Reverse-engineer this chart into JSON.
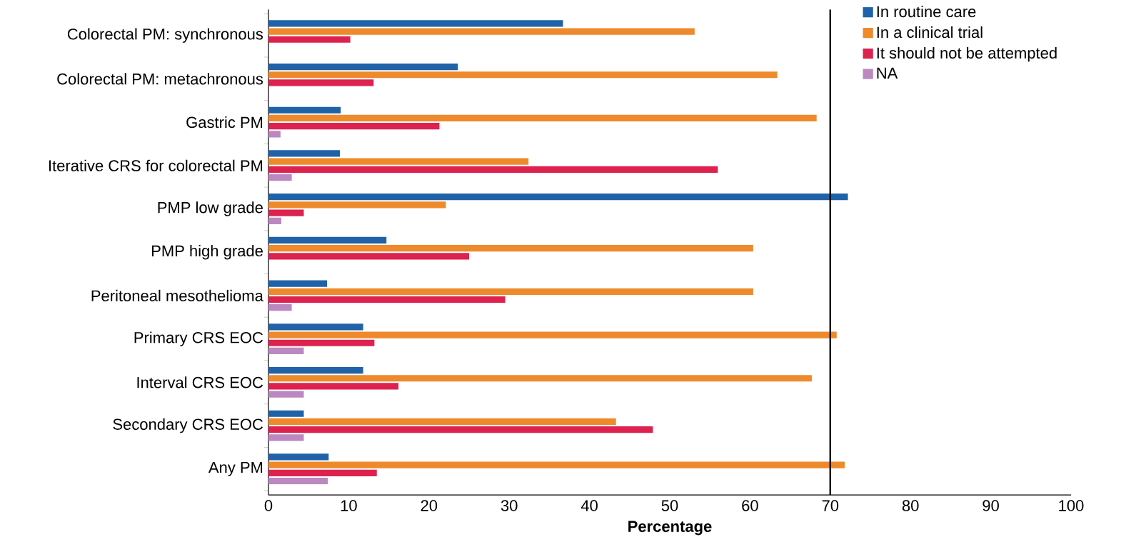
{
  "chart_data": {
    "type": "bar",
    "orientation": "horizontal",
    "xlabel": "Percentage",
    "categories": [
      "Colorectal PM: synchronous",
      "Colorectal PM: metachronous",
      "Gastric PM",
      "Iterative CRS for colorectal PM",
      "PMP low grade",
      "PMP high grade",
      "Peritoneal mesothelioma",
      "Primary CRS EOC",
      "Interval CRS EOC",
      "Secondary CRS EOC",
      "Any PM"
    ],
    "series": [
      {
        "name": "In routine care",
        "color": "#1f62a8",
        "values": [
          36.7,
          23.6,
          9.0,
          8.9,
          72.2,
          14.7,
          7.3,
          11.8,
          11.8,
          4.4,
          7.5
        ]
      },
      {
        "name": "In a clinical trial",
        "color": "#ee8a2c",
        "values": [
          53.1,
          63.4,
          68.3,
          32.4,
          22.1,
          60.4,
          60.4,
          70.8,
          67.7,
          43.3,
          71.8
        ]
      },
      {
        "name": "It should not be attempted",
        "color": "#dd2250",
        "values": [
          10.2,
          13.1,
          21.3,
          56.0,
          4.4,
          25.0,
          29.5,
          13.2,
          16.2,
          47.9,
          13.5
        ]
      },
      {
        "name": "NA",
        "color": "#bb88c0",
        "values": [
          null,
          null,
          1.5,
          2.9,
          1.6,
          null,
          2.9,
          4.4,
          4.4,
          4.4,
          7.4
        ]
      }
    ],
    "xlim": [
      0,
      100
    ],
    "xticks": [
      0,
      10,
      20,
      30,
      40,
      50,
      60,
      70,
      80,
      90,
      100
    ],
    "ref_lines": [
      {
        "axis": "x",
        "value": 70,
        "color": "#000000"
      }
    ],
    "legend": "top right"
  }
}
